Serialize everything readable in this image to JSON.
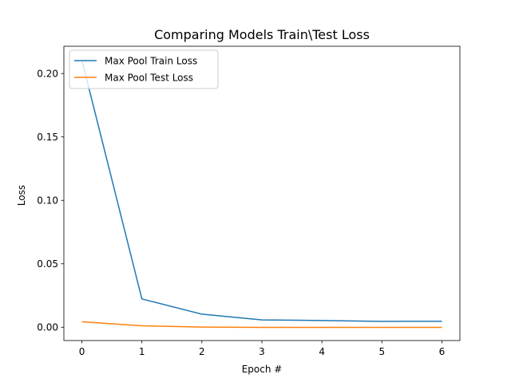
{
  "chart_data": {
    "type": "line",
    "title": "Comparing Models Train\\Test Loss",
    "xlabel": "Epoch #",
    "ylabel": "Loss",
    "x": [
      0,
      1,
      2,
      3,
      4,
      5,
      6
    ],
    "xticks": [
      "0",
      "1",
      "2",
      "3",
      "4",
      "5",
      "6"
    ],
    "yticks": [
      "0.00",
      "0.05",
      "0.10",
      "0.15",
      "0.20"
    ],
    "xlim": [
      -0.3,
      6.3
    ],
    "ylim": [
      -0.0105,
      0.2215
    ],
    "grid": false,
    "legend_position": "upper left",
    "series": [
      {
        "name": "Max Pool Train Loss",
        "color": "#1f77b4",
        "values": [
          0.2105,
          0.0223,
          0.0103,
          0.0058,
          0.0053,
          0.0046,
          0.0047
        ]
      },
      {
        "name": "Max Pool Test Loss",
        "color": "#ff7f0e",
        "values": [
          0.0043,
          0.0011,
          0.0001,
          -0.0001,
          -0.0001,
          -0.0001,
          -0.0001
        ]
      }
    ]
  }
}
